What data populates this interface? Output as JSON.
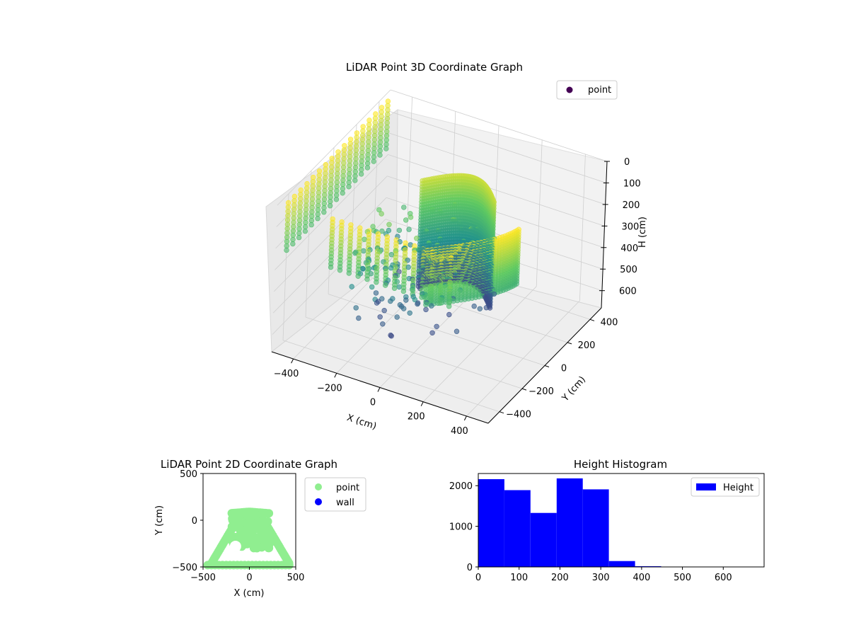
{
  "chart_data": [
    {
      "type": "scatter3d",
      "title": "LiDAR Point 3D Coordinate Graph",
      "xlabel": "X (cm)",
      "ylabel": "Y (cm)",
      "zlabel": "H (cm)",
      "x_ticks": [
        -400,
        -200,
        0,
        200,
        400
      ],
      "y_ticks": [
        -400,
        -200,
        0,
        200,
        400
      ],
      "z_ticks": [
        0,
        100,
        200,
        300,
        400,
        500,
        600
      ],
      "xlim": [
        -500,
        500
      ],
      "ylim": [
        -500,
        500
      ],
      "zlim": [
        0,
        680
      ],
      "z_inverted": true,
      "colormap": "viridis",
      "legend": {
        "placement": "upper-right",
        "entries": [
          {
            "name": "point",
            "color": "#440154"
          }
        ]
      },
      "grid": true
    },
    {
      "type": "scatter",
      "title": "LiDAR Point 2D Coordinate Graph",
      "xlabel": "X (cm)",
      "ylabel": "Y (cm)",
      "x_ticks": [
        -500,
        0,
        500
      ],
      "y_ticks": [
        500,
        0,
        -500
      ],
      "xlim": [
        -500,
        500
      ],
      "ylim": [
        -500,
        500
      ],
      "legend": {
        "placement": "outside-right",
        "entries": [
          {
            "name": "point",
            "color": "#90ee90"
          },
          {
            "name": "wall",
            "color": "#0000ff"
          }
        ]
      }
    },
    {
      "type": "bar",
      "title": "Height Histogram",
      "x_ticks": [
        0,
        100,
        200,
        300,
        400,
        500,
        600
      ],
      "y_ticks": [
        0,
        1000,
        2000
      ],
      "xlim": [
        0,
        700
      ],
      "ylim": [
        0,
        2300
      ],
      "bin_width": 64,
      "bin_starts": [
        0,
        64,
        128,
        192,
        256,
        320,
        384,
        448,
        512,
        576,
        640
      ],
      "values": [
        2160,
        1890,
        1330,
        2180,
        1910,
        145,
        18,
        3,
        0,
        0,
        0
      ],
      "color": "#0000ff",
      "legend": {
        "placement": "upper-right",
        "entries": [
          {
            "name": "Height",
            "color": "#0000ff"
          }
        ]
      }
    }
  ]
}
